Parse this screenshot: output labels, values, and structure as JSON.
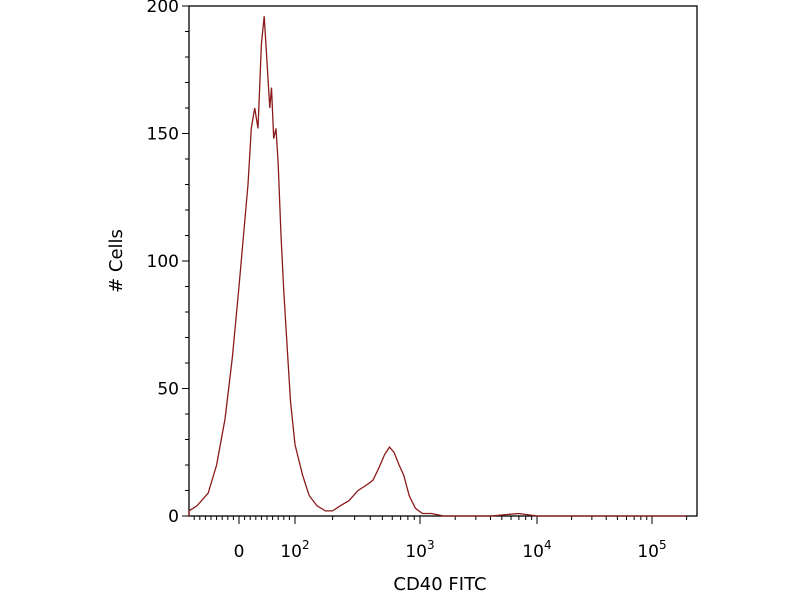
{
  "chart_data": {
    "type": "line",
    "xlabel": "CD40 FITC",
    "ylabel": "# Cells",
    "xscale": "biexponential (logicle)",
    "ylim": [
      0,
      200
    ],
    "yticks": [
      {
        "value": 0,
        "label": "0"
      },
      {
        "value": 50,
        "label": "50"
      },
      {
        "value": 100,
        "label": "100"
      },
      {
        "value": 150,
        "label": "150"
      },
      {
        "value": 200,
        "label": "200"
      }
    ],
    "xticks": [
      {
        "value": 0,
        "label": "0"
      },
      {
        "value": 100,
        "base": "10",
        "exp": "2"
      },
      {
        "value": 1000,
        "base": "10",
        "exp": "3"
      },
      {
        "value": 10000,
        "base": "10",
        "exp": "4"
      },
      {
        "value": 100000,
        "base": "10",
        "exp": "5"
      }
    ],
    "line_color": "#8b1a1a",
    "series": [
      {
        "x": [
          -130,
          -100,
          -75,
          -55,
          -40,
          -25,
          -12,
          0,
          8,
          16,
          22,
          28,
          34,
          40,
          45,
          50,
          55,
          58,
          62,
          66,
          70,
          75,
          80,
          86,
          92,
          100,
          115,
          130,
          150,
          175,
          200,
          230,
          270,
          320,
          370,
          420,
          470,
          520,
          570,
          620,
          680,
          740,
          820,
          920,
          1050,
          1250,
          1600,
          2500,
          4000,
          7000,
          10000,
          20000,
          50000,
          100000,
          200000
        ],
        "y": [
          0,
          2,
          4,
          9,
          20,
          38,
          62,
          90,
          110,
          130,
          152,
          160,
          152,
          185,
          196,
          178,
          160,
          168,
          148,
          152,
          138,
          110,
          88,
          66,
          45,
          28,
          16,
          8,
          4,
          2,
          2,
          4,
          6,
          10,
          12,
          14,
          19,
          24,
          27,
          25,
          20,
          16,
          8,
          3,
          1,
          1,
          0,
          0,
          0,
          1,
          0,
          0,
          0,
          0,
          0
        ]
      }
    ]
  }
}
